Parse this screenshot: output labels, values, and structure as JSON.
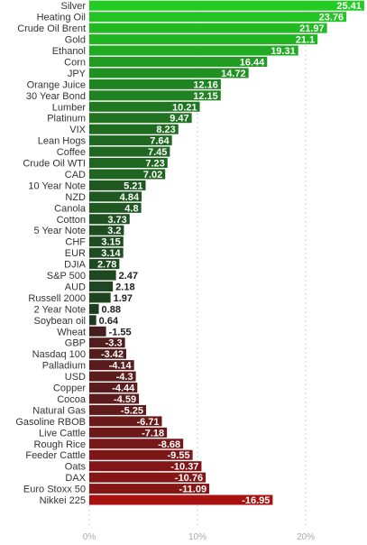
{
  "chart_data": {
    "type": "bar",
    "orientation": "horizontal",
    "categories": [
      "Silver",
      "Heating Oil",
      "Crude Oil Brent",
      "Gold",
      "Ethanol",
      "Corn",
      "JPY",
      "Orange Juice",
      "30 Year Bond",
      "Lumber",
      "Platinum",
      "VIX",
      "Lean Hogs",
      "Coffee",
      "Crude Oil WTI",
      "CAD",
      "10 Year Note",
      "NZD",
      "Canola",
      "Cotton",
      "5 Year Note",
      "CHF",
      "EUR",
      "DJIA",
      "S&P 500",
      "AUD",
      "Russell 2000",
      "2 Year Note",
      "Soybean oil",
      "Wheat",
      "GBP",
      "Nasdaq 100",
      "Palladium",
      "USD",
      "Copper",
      "Cocoa",
      "Natural Gas",
      "Gasoline RBOB",
      "Live Cattle",
      "Rough Rice",
      "Feeder Cattle",
      "Oats",
      "DAX",
      "Euro Stoxx 50",
      "Nikkei 225"
    ],
    "values": [
      25.41,
      23.76,
      21.97,
      21.1,
      19.31,
      16.44,
      14.72,
      12.16,
      12.15,
      10.21,
      9.47,
      8.23,
      7.64,
      7.45,
      7.23,
      7.02,
      5.21,
      4.84,
      4.8,
      3.73,
      3.2,
      3.15,
      3.14,
      2.78,
      2.47,
      2.18,
      1.97,
      0.88,
      0.64,
      -1.55,
      -3.3,
      -3.42,
      -4.14,
      -4.3,
      -4.44,
      -4.59,
      -5.25,
      -6.71,
      -7.18,
      -8.68,
      -9.55,
      -10.37,
      -10.76,
      -11.09,
      -16.95
    ],
    "value_labels": [
      "25.41",
      "23.76",
      "21.97",
      "21.1",
      "19.31",
      "16.44",
      "14.72",
      "12.16",
      "12.15",
      "10.21",
      "9.47",
      "8.23",
      "7.64",
      "7.45",
      "7.23",
      "7.02",
      "5.21",
      "4.84",
      "4.8",
      "3.73",
      "3.2",
      "3.15",
      "3.14",
      "2.78",
      "2.47",
      "2.18",
      "1.97",
      "0.88",
      "0.64",
      "-1.55",
      "-3.3",
      "-3.42",
      "-4.14",
      "-4.3",
      "-4.44",
      "-4.59",
      "-5.25",
      "-6.71",
      "-7.18",
      "-8.68",
      "-9.55",
      "-10.37",
      "-10.76",
      "-11.09",
      "-16.95"
    ],
    "x_ticks": [
      0,
      10,
      20
    ],
    "x_tick_labels": [
      "0%",
      "10%",
      "20%"
    ],
    "xlim": [
      0,
      26.5
    ],
    "grid": true,
    "colors": {
      "high_positive": "#22cc22",
      "low_positive": "#1e3520",
      "low_negative": "#3a2020",
      "high_negative": "#aa1111"
    }
  }
}
